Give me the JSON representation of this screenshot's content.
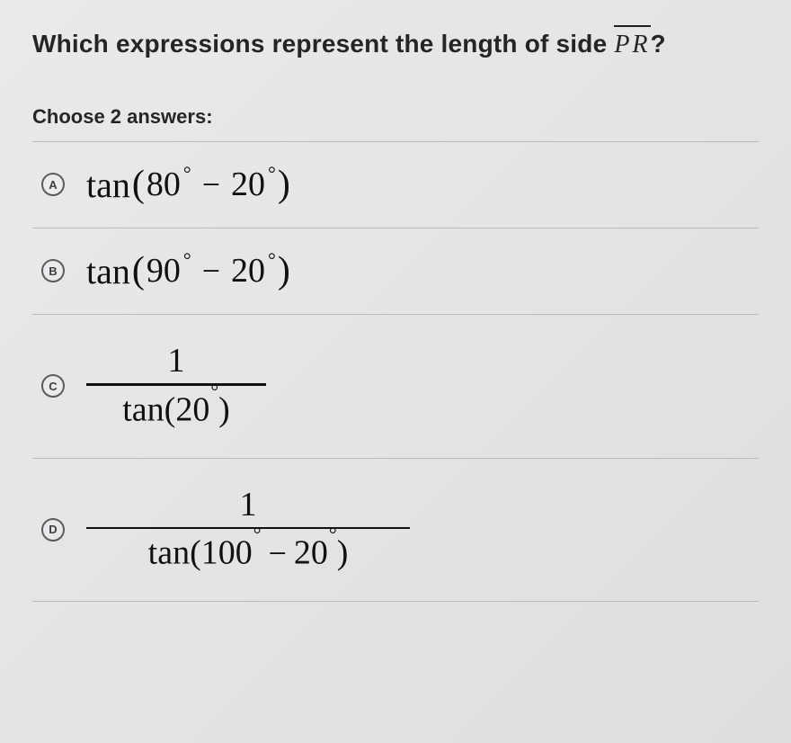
{
  "question": {
    "prefix": "Which expressions represent the length of side ",
    "segment": "PR",
    "suffix": "?"
  },
  "instruction": "Choose 2 answers:",
  "choices": {
    "a": {
      "letter": "A",
      "func": "tan",
      "lp": "(",
      "v1": "80",
      "deg": "°",
      "minus": "−",
      "v2": "20",
      "rp": ")"
    },
    "b": {
      "letter": "B",
      "func": "tan",
      "lp": "(",
      "v1": "90",
      "deg": "°",
      "minus": "−",
      "v2": "20",
      "rp": ")"
    },
    "c": {
      "letter": "C",
      "num": "1",
      "dfunc": "tan",
      "lp": "(",
      "dval": "20",
      "deg": "°",
      "rp": ")"
    },
    "d": {
      "letter": "D",
      "num": "1",
      "dfunc": "tan",
      "lp": "(",
      "v1": "100",
      "deg": "°",
      "minus": "−",
      "v2": "20",
      "rp": ")"
    }
  },
  "style": {
    "text_color": "#1f1f1f",
    "rule_color": "#b9bbbd",
    "circle_border": "#5a5c5e",
    "background_start": "#e8eaec",
    "background_end": "#dcdee0",
    "question_fontsize": 28,
    "instruction_fontsize": 22,
    "expr_fontsize": 40,
    "letter_circle_size": 26
  }
}
